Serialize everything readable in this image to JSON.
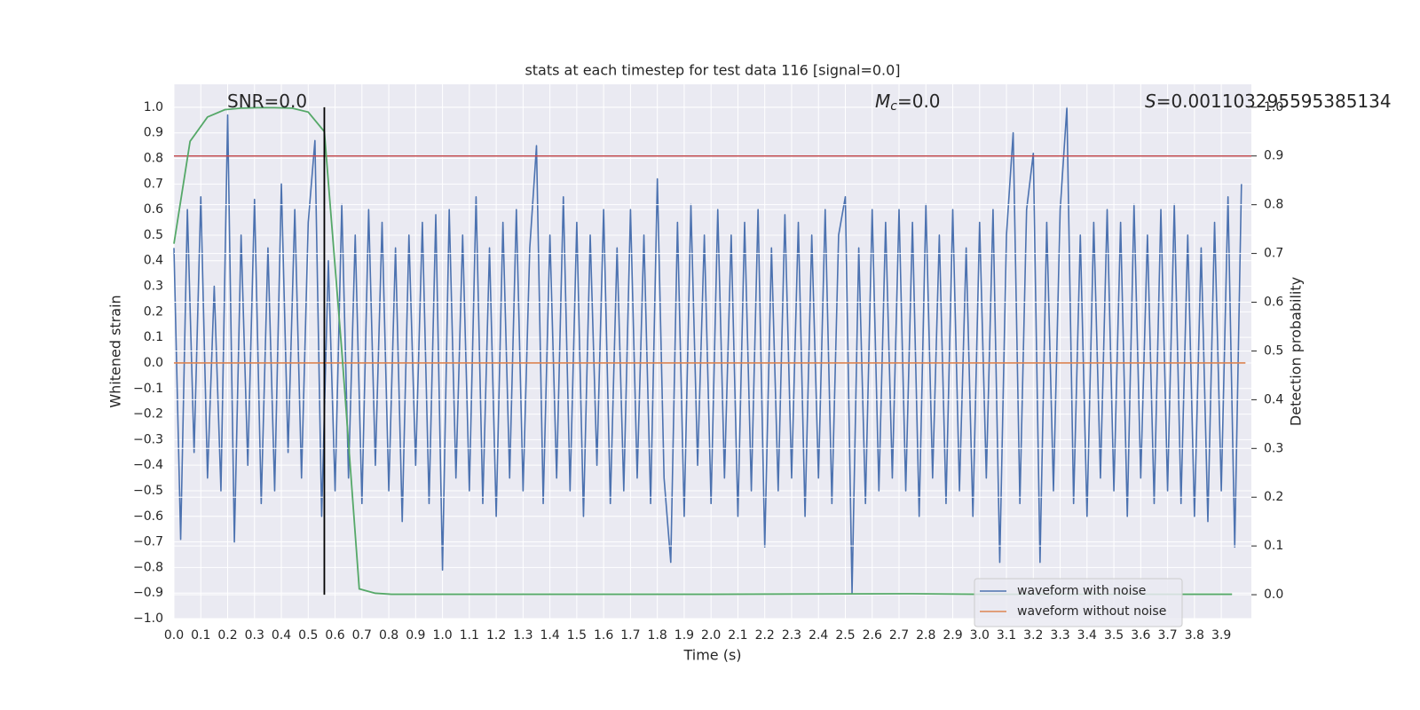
{
  "chart_data": {
    "type": "line",
    "title": "stats at each timestep for test data 116 [signal=0.0]",
    "xlabel": "Time (s)",
    "ylabel": "Whitened strain",
    "y2label": "Detection probability",
    "grid": true,
    "legend": "lower right",
    "annotations": [
      {
        "text": "SNR=0.0"
      },
      {
        "symbol": "M",
        "subscript": "c",
        "text": "=0.0"
      },
      {
        "symbol": "S",
        "text": "=0.001103295595385134"
      }
    ],
    "xlim": [
      0,
      4.012
    ],
    "ylim": [
      -1,
      1.09
    ],
    "y2lim": [
      -0.049,
      1.047
    ],
    "xticks": [
      {
        "value": 0,
        "label": "0.0"
      },
      0.1,
      0.2,
      0.3,
      0.4,
      0.5,
      0.6,
      0.7,
      0.8,
      0.9,
      {
        "value": 1,
        "label": "1.0"
      },
      1.1,
      1.2,
      1.3,
      1.4,
      1.5,
      1.6,
      1.7,
      1.8,
      1.9,
      {
        "value": 2,
        "label": "2.0"
      },
      2.1,
      2.2,
      2.3,
      2.4,
      2.5,
      2.6,
      2.7,
      2.8,
      2.9,
      {
        "value": 3,
        "label": "3.0"
      },
      3.1,
      3.2,
      3.3,
      3.4,
      3.5,
      3.6,
      3.7,
      3.8,
      3.9
    ],
    "yticks": [
      {
        "value": -1,
        "label": "−1.0"
      },
      {
        "value": -0.9,
        "label": "−0.9"
      },
      {
        "value": -0.8,
        "label": "−0.8"
      },
      {
        "value": -0.7,
        "label": "−0.7"
      },
      {
        "value": -0.6,
        "label": "−0.6"
      },
      {
        "value": -0.5,
        "label": "−0.5"
      },
      {
        "value": -0.4,
        "label": "−0.4"
      },
      {
        "value": -0.3,
        "label": "−0.3"
      },
      {
        "value": -0.2,
        "label": "−0.2"
      },
      {
        "value": -0.1,
        "label": "−0.1"
      },
      {
        "value": 0,
        "label": "0.0"
      },
      0.1,
      0.2,
      0.3,
      0.4,
      0.5,
      0.6,
      0.7,
      0.8,
      0.9,
      {
        "value": 1,
        "label": "1.0"
      }
    ],
    "y2ticks": [
      {
        "value": 0,
        "label": "0.0"
      },
      0.1,
      0.2,
      0.3,
      0.4,
      0.5,
      0.6,
      0.7,
      0.8,
      0.9,
      {
        "value": 1,
        "label": "1.0"
      }
    ],
    "series": [
      {
        "name": "waveform with noise",
        "color": "#4c72b0",
        "x": [
          0,
          0.025,
          0.05,
          0.075,
          0.1,
          0.125,
          0.15,
          0.175,
          0.2,
          0.225,
          0.25,
          0.275,
          0.3,
          0.325,
          0.35,
          0.375,
          0.4,
          0.425,
          0.45,
          0.475,
          0.5,
          0.525,
          0.55,
          0.575,
          0.6,
          0.625,
          0.65,
          0.675,
          0.7,
          0.725,
          0.75,
          0.775,
          0.8,
          0.825,
          0.85,
          0.875,
          0.9,
          0.925,
          0.95,
          0.975,
          1,
          1.025,
          1.05,
          1.075,
          1.1,
          1.125,
          1.15,
          1.175,
          1.2,
          1.225,
          1.25,
          1.275,
          1.3,
          1.325,
          1.35,
          1.375,
          1.4,
          1.425,
          1.45,
          1.475,
          1.5,
          1.525,
          1.55,
          1.575,
          1.6,
          1.625,
          1.65,
          1.675,
          1.7,
          1.725,
          1.75,
          1.775,
          1.8,
          1.825,
          1.85,
          1.875,
          1.9,
          1.925,
          1.95,
          1.975,
          2,
          2.025,
          2.05,
          2.075,
          2.1,
          2.125,
          2.15,
          2.175,
          2.2,
          2.225,
          2.25,
          2.275,
          2.3,
          2.325,
          2.35,
          2.375,
          2.4,
          2.425,
          2.45,
          2.475,
          2.5,
          2.525,
          2.55,
          2.575,
          2.6,
          2.625,
          2.65,
          2.675,
          2.7,
          2.725,
          2.75,
          2.775,
          2.8,
          2.825,
          2.85,
          2.875,
          2.9,
          2.925,
          2.95,
          2.975,
          3,
          3.025,
          3.05,
          3.075,
          3.1,
          3.125,
          3.15,
          3.175,
          3.2,
          3.225,
          3.25,
          3.275,
          3.3,
          3.325,
          3.35,
          3.375,
          3.4,
          3.425,
          3.45,
          3.475,
          3.5,
          3.525,
          3.55,
          3.575,
          3.6,
          3.625,
          3.65,
          3.675,
          3.7,
          3.725,
          3.75,
          3.775,
          3.8,
          3.825,
          3.85,
          3.875,
          3.9,
          3.925,
          3.95,
          3.975
        ],
        "values": [
          0.45,
          -0.69,
          0.6,
          -0.35,
          0.65,
          -0.45,
          0.3,
          -0.5,
          0.97,
          -0.7,
          0.5,
          -0.4,
          0.64,
          -0.55,
          0.45,
          -0.5,
          0.7,
          -0.35,
          0.6,
          -0.45,
          0.55,
          0.87,
          -0.6,
          0.4,
          -0.5,
          0.62,
          -0.45,
          0.5,
          -0.55,
          0.6,
          -0.4,
          0.55,
          -0.5,
          0.45,
          -0.62,
          0.5,
          -0.4,
          0.55,
          -0.55,
          0.58,
          -0.81,
          0.6,
          -0.45,
          0.5,
          -0.5,
          0.65,
          -0.55,
          0.45,
          -0.6,
          0.55,
          -0.45,
          0.6,
          -0.5,
          0.45,
          0.85,
          -0.55,
          0.5,
          -0.45,
          0.65,
          -0.5,
          0.55,
          -0.6,
          0.5,
          -0.4,
          0.6,
          -0.55,
          0.45,
          -0.5,
          0.6,
          -0.45,
          0.5,
          -0.55,
          0.72,
          -0.45,
          -0.78,
          0.55,
          -0.6,
          0.62,
          -0.4,
          0.5,
          -0.55,
          0.6,
          -0.45,
          0.5,
          -0.6,
          0.55,
          -0.5,
          0.6,
          -0.72,
          0.45,
          -0.5,
          0.58,
          -0.45,
          0.55,
          -0.6,
          0.5,
          -0.45,
          0.6,
          -0.55,
          0.5,
          0.65,
          -0.9,
          0.45,
          -0.55,
          0.6,
          -0.5,
          0.55,
          -0.45,
          0.6,
          -0.5,
          0.55,
          -0.6,
          0.62,
          -0.45,
          0.5,
          -0.55,
          0.6,
          -0.5,
          0.45,
          -0.6,
          0.55,
          -0.45,
          0.6,
          -0.78,
          0.5,
          0.9,
          -0.55,
          0.6,
          0.82,
          -0.78,
          0.55,
          -0.5,
          0.6,
          1.0,
          -0.55,
          0.5,
          -0.6,
          0.55,
          -0.45,
          0.6,
          -0.5,
          0.55,
          -0.6,
          0.62,
          -0.45,
          0.5,
          -0.55,
          0.6,
          -0.5,
          0.62,
          -0.55,
          0.5,
          -0.6,
          0.45,
          -0.62,
          0.55,
          -0.5,
          0.65,
          -0.72,
          0.7
        ]
      },
      {
        "name": "waveform without noise",
        "color": "#dd8452",
        "x": [
          0,
          3.99
        ],
        "values": [
          0,
          0
        ]
      }
    ],
    "detection_probability": {
      "color": "#55a868",
      "axis": "y2",
      "x": [
        0,
        0.06,
        0.125,
        0.19,
        0.25,
        0.31,
        0.375,
        0.44,
        0.5,
        0.56,
        0.625,
        0.69,
        0.75,
        0.81,
        1.0,
        2.0,
        2.75,
        3.0,
        3.94
      ],
      "values": [
        0.72,
        0.93,
        0.98,
        0.995,
        0.998,
        0.999,
        0.999,
        0.998,
        0.99,
        0.95,
        0.5,
        0.012,
        0.003,
        0.001,
        0.001,
        0.001,
        0.002,
        0.001,
        0.001
      ]
    },
    "threshold": {
      "value": 0.9,
      "color": "#c44e52",
      "axis": "y2"
    },
    "marker": {
      "x": 0.56,
      "y2": [
        0,
        1.0
      ],
      "color": "#000000"
    }
  }
}
